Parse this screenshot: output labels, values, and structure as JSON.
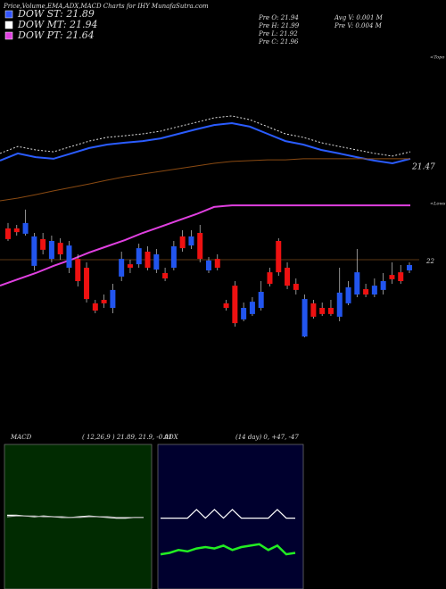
{
  "header": {
    "title": "Price,Volume,EMA,ADX,MACD Charts for IHY MunafaSutra.com",
    "legend": [
      {
        "label": "DOW ST: 21.89",
        "color": "#3355ff"
      },
      {
        "label": "DOW MT: 21.94",
        "color": "#ffffff"
      },
      {
        "label": "DOW PT: 21.64",
        "color": "#e040e0"
      }
    ],
    "info": [
      "Pre  O: 21.94",
      "Pre  H: 21.99",
      "Pre  L: 21.92",
      "Pre  C: 21.96",
      "Avg V: 0.001 M",
      "Pre  V: 0.004  M"
    ]
  },
  "chart_data": [
    {
      "type": "candlestick",
      "ylim": [
        21.37,
        22.97
      ],
      "yticks": [
        22
      ],
      "annotations": [
        "21.47",
        "<Topo",
        "<Lows"
      ],
      "up_color": "#2255ee",
      "down_color": "#ee1111",
      "open": [
        22.117,
        22.117,
        22.097,
        21.977,
        22.077,
        22.003,
        22.063,
        21.97,
        22.003,
        21.97,
        21.837,
        21.85,
        21.82,
        21.937,
        21.983,
        21.983,
        22.03,
        21.963,
        21.95,
        21.97,
        22.087,
        22.053,
        22.1,
        21.96,
        22.003,
        21.837,
        21.903,
        21.777,
        21.797,
        21.82,
        21.953,
        22.07,
        21.97,
        21.91,
        21.713,
        21.837,
        21.82,
        21.82,
        21.787,
        21.837,
        21.87,
        21.89,
        21.87,
        21.887,
        21.943,
        21.953,
        21.96
      ],
      "high": [
        22.137,
        22.13,
        22.187,
        22.1,
        22.1,
        22.09,
        22.08,
        22.07,
        22.02,
        21.99,
        21.85,
        21.87,
        21.91,
        22.03,
        22.0,
        22.06,
        22.05,
        22.04,
        21.97,
        22.07,
        22.11,
        22.11,
        22.13,
        22.01,
        22.02,
        21.85,
        21.92,
        21.84,
        21.86,
        21.92,
        21.97,
        22.08,
        21.99,
        21.93,
        21.87,
        21.85,
        21.84,
        21.85,
        21.97,
        21.92,
        22.04,
        21.91,
        21.93,
        21.95,
        21.99,
        21.98,
        21.99
      ],
      "low": [
        22.07,
        22.09,
        22.09,
        21.96,
        22.02,
        21.99,
        22.0,
        21.95,
        21.9,
        21.84,
        21.8,
        21.82,
        21.8,
        21.92,
        21.95,
        21.97,
        21.96,
        21.95,
        21.92,
        21.96,
        22.03,
        22.04,
        21.99,
        21.95,
        21.96,
        21.81,
        21.75,
        21.77,
        21.79,
        21.81,
        21.9,
        21.94,
        21.89,
        21.87,
        21.71,
        21.78,
        21.79,
        21.79,
        21.77,
        21.83,
        21.86,
        21.86,
        21.86,
        21.87,
        21.91,
        21.91,
        21.95
      ],
      "close": [
        22.077,
        22.103,
        22.137,
        22.087,
        22.037,
        22.07,
        22.02,
        22.053,
        21.92,
        21.853,
        21.81,
        21.837,
        21.887,
        22.003,
        21.97,
        22.043,
        21.97,
        22.02,
        21.93,
        22.05,
        22.043,
        22.087,
        22.003,
        21.997,
        21.97,
        21.82,
        21.763,
        21.82,
        21.843,
        21.88,
        21.91,
        21.953,
        21.903,
        21.887,
        21.853,
        21.787,
        21.797,
        21.797,
        21.877,
        21.897,
        21.953,
        21.87,
        21.903,
        21.92,
        21.927,
        21.92,
        21.98
      ],
      "series": [
        {
          "color": "#2a5cff",
          "values": [
            22.37,
            22.397,
            22.383,
            22.377,
            22.397,
            22.417,
            22.43,
            22.437,
            22.443,
            22.453,
            22.47,
            22.487,
            22.503,
            22.51,
            22.497,
            22.47,
            22.443,
            22.43,
            22.41,
            22.397,
            22.383,
            22.37,
            22.36,
            22.377
          ]
        },
        {
          "color": "#dddddd",
          "values": [
            22.397,
            22.423,
            22.41,
            22.403,
            22.423,
            22.443,
            22.457,
            22.463,
            22.47,
            22.48,
            22.497,
            22.513,
            22.53,
            22.537,
            22.523,
            22.497,
            22.47,
            22.457,
            22.437,
            22.423,
            22.41,
            22.397,
            22.387,
            22.403
          ]
        },
        {
          "color": "#8a4a12",
          "values": [
            22.22,
            22.23,
            22.243,
            22.257,
            22.27,
            22.283,
            22.297,
            22.31,
            22.32,
            22.33,
            22.34,
            22.35,
            22.36,
            22.367,
            22.37,
            22.373,
            22.373,
            22.377,
            22.377,
            22.377,
            22.377,
            22.377,
            22.377,
            22.377
          ]
        },
        {
          "color": "#e040e0",
          "values": [
            21.903,
            21.927,
            21.95,
            21.977,
            22.0,
            22.027,
            22.05,
            22.073,
            22.1,
            22.123,
            22.147,
            22.17,
            22.197,
            22.203,
            22.203,
            22.203,
            22.203,
            22.203,
            22.203,
            22.203,
            22.203,
            22.203,
            22.203,
            22.203
          ]
        }
      ]
    },
    {
      "type": "line",
      "title": "MACD",
      "subtitle": "( 12,26,9 ) 21.89, 21.9, -0.01",
      "background": "#012b01",
      "ylim": [
        -1,
        1
      ],
      "series": [
        {
          "color": "#ffffff",
          "values": [
            0.02,
            0.02,
            0.01,
            0.0,
            0.01,
            0.0,
            -0.01,
            -0.01,
            0.0,
            0.01,
            0.0,
            -0.01,
            -0.02,
            -0.02,
            -0.01,
            -0.01
          ]
        },
        {
          "color": "#aaaaaa",
          "values": [
            0.0,
            0.01,
            0.01,
            0.01,
            0.0,
            0.0,
            0.0,
            -0.01,
            -0.01,
            0.0,
            0.0,
            0.0,
            -0.01,
            -0.01,
            -0.01,
            -0.01
          ]
        }
      ]
    },
    {
      "type": "line",
      "title": "ADX",
      "subtitle": "(14 day) 0, +47, -47",
      "background": "#00002e",
      "ylim": [
        0,
        100
      ],
      "series": [
        {
          "color": "#ffffff",
          "values": [
            49,
            49,
            49,
            49,
            55,
            49,
            55,
            49,
            55,
            49,
            49,
            49,
            49,
            55,
            49,
            49
          ]
        },
        {
          "color": "#22ee22",
          "values": [
            24,
            25,
            27,
            26,
            28,
            29,
            28,
            30,
            27,
            29,
            30,
            31,
            27,
            30,
            24,
            25
          ]
        }
      ]
    }
  ]
}
